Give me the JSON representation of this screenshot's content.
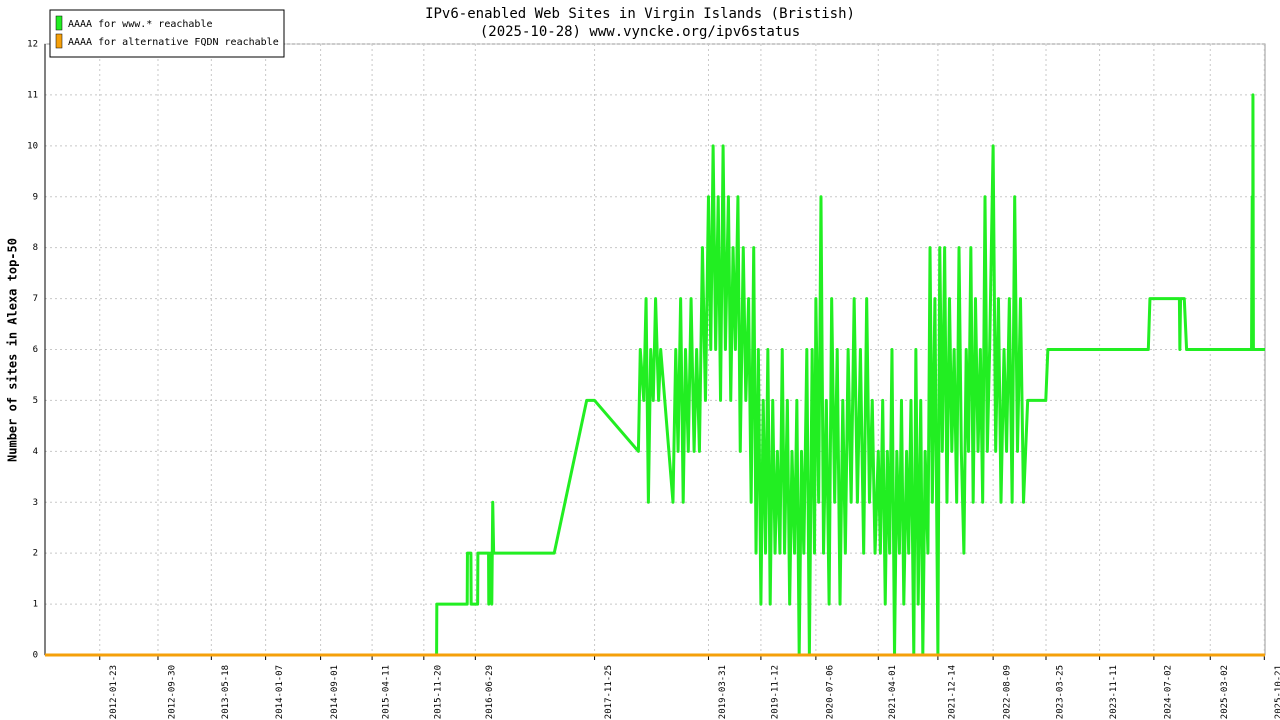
{
  "chart_data": {
    "type": "line",
    "title": "IPv6-enabled Web Sites in Virgin Islands (Bristish)",
    "subtitle": "(2025-10-28) www.vyncke.org/ipv6status",
    "y_label": "Number of sites in Alexa top-50",
    "xlim": [
      "2011-06-01",
      "2025-10-24"
    ],
    "xticks": [
      "2012-01-23",
      "2012-09-30",
      "2013-05-18",
      "2014-01-07",
      "2014-09-01",
      "2015-04-11",
      "2015-11-20",
      "2016-06-29",
      "2017-11-25",
      "2019-03-31",
      "2019-11-12",
      "2020-07-06",
      "2021-04-01",
      "2021-12-14",
      "2022-08-09",
      "2023-03-25",
      "2023-11-11",
      "2024-07-02",
      "2025-03-02",
      "2025-10-21"
    ],
    "ylim": [
      0,
      12
    ],
    "yticks": [
      0,
      1,
      2,
      3,
      4,
      5,
      6,
      7,
      8,
      9,
      10,
      11,
      12
    ],
    "grid": true,
    "legend": "top-left",
    "series": [
      {
        "name": "AAAA for www.* reachable",
        "color": "#22ee22",
        "x": [
          "2011-06-01",
          "2016-01-14",
          "2016-01-15",
          "2016-05-25",
          "2016-05-26",
          "2016-06-10",
          "2016-06-11",
          "2016-07-09",
          "2016-07-10",
          "2016-08-25",
          "2016-08-26",
          "2016-09-01",
          "2016-09-08",
          "2016-09-12",
          "2016-09-16",
          "2017-06-04",
          "2017-10-22",
          "2017-11-25",
          "2018-06-02",
          "2018-06-10",
          "2018-06-25",
          "2018-07-05",
          "2018-07-15",
          "2018-07-25",
          "2018-08-05",
          "2018-08-15",
          "2018-08-28",
          "2018-09-06",
          "2018-10-29",
          "2018-11-10",
          "2018-11-20",
          "2018-12-01",
          "2018-12-12",
          "2018-12-22",
          "2019-01-03",
          "2019-01-15",
          "2019-01-28",
          "2019-02-08",
          "2019-02-20",
          "2019-03-05",
          "2019-03-18",
          "2019-03-31",
          "2019-04-10",
          "2019-04-20",
          "2019-05-01",
          "2019-05-12",
          "2019-05-22",
          "2019-06-02",
          "2019-06-12",
          "2019-06-25",
          "2019-07-05",
          "2019-07-15",
          "2019-07-25",
          "2019-08-05",
          "2019-08-15",
          "2019-08-28",
          "2019-09-08",
          "2019-09-20",
          "2019-10-01",
          "2019-10-12",
          "2019-10-22",
          "2019-11-01",
          "2019-11-12",
          "2019-11-22",
          "2019-12-02",
          "2019-12-12",
          "2019-12-22",
          "2020-01-02",
          "2020-01-12",
          "2020-01-22",
          "2020-02-02",
          "2020-02-12",
          "2020-02-22",
          "2020-03-05",
          "2020-03-15",
          "2020-03-25",
          "2020-04-05",
          "2020-04-15",
          "2020-04-25",
          "2020-05-05",
          "2020-05-15",
          "2020-05-28",
          "2020-06-08",
          "2020-06-20",
          "2020-06-30",
          "2020-07-06",
          "2020-07-18",
          "2020-07-28",
          "2020-08-08",
          "2020-08-20",
          "2020-09-01",
          "2020-09-12",
          "2020-09-25",
          "2020-10-06",
          "2020-10-18",
          "2020-10-30",
          "2020-11-10",
          "2020-11-22",
          "2020-12-05",
          "2020-12-18",
          "2021-01-01",
          "2021-01-14",
          "2021-01-28",
          "2021-02-10",
          "2021-02-22",
          "2021-03-06",
          "2021-03-18",
          "2021-04-01",
          "2021-04-10",
          "2021-04-20",
          "2021-05-01",
          "2021-05-10",
          "2021-05-20",
          "2021-05-30",
          "2021-06-10",
          "2021-06-20",
          "2021-07-01",
          "2021-07-10",
          "2021-07-20",
          "2021-08-01",
          "2021-08-10",
          "2021-08-20",
          "2021-09-01",
          "2021-09-10",
          "2021-09-20",
          "2021-10-01",
          "2021-10-10",
          "2021-10-20",
          "2021-11-01",
          "2021-11-10",
          "2021-11-20",
          "2021-12-01",
          "2021-12-14",
          "2021-12-22",
          "2022-01-02",
          "2022-01-12",
          "2022-01-22",
          "2022-02-02",
          "2022-02-12",
          "2022-02-22",
          "2022-03-05",
          "2022-03-15",
          "2022-03-25",
          "2022-04-05",
          "2022-04-15",
          "2022-04-25",
          "2022-05-05",
          "2022-05-15",
          "2022-05-25",
          "2022-06-05",
          "2022-06-15",
          "2022-06-25",
          "2022-07-05",
          "2022-07-15",
          "2022-07-25",
          "2022-08-09",
          "2022-08-20",
          "2022-09-01",
          "2022-09-12",
          "2022-09-25",
          "2022-10-06",
          "2022-10-18",
          "2022-10-30",
          "2022-11-10",
          "2022-11-22",
          "2022-12-05",
          "2022-12-18",
          "2023-01-05",
          "2023-03-24",
          "2023-04-02",
          "2024-06-08",
          "2024-06-15",
          "2024-10-20",
          "2024-10-22",
          "2024-10-25",
          "2024-11-10",
          "2024-11-20",
          "2025-08-27",
          "2025-08-30",
          "2025-09-01",
          "2025-09-02",
          "2025-09-04",
          "2025-10-24"
        ],
        "values": [
          0,
          0,
          1,
          1,
          2,
          2,
          1,
          1,
          2,
          2,
          1,
          2,
          1,
          3,
          2,
          2,
          5,
          5,
          4,
          6,
          5,
          7,
          3,
          6,
          5,
          7,
          5,
          6,
          3,
          6,
          4,
          7,
          3,
          6,
          4,
          7,
          4,
          6,
          4,
          8,
          5,
          9,
          6,
          10,
          6,
          9,
          5,
          10,
          6,
          9,
          5,
          8,
          6,
          9,
          4,
          8,
          5,
          7,
          3,
          8,
          2,
          6,
          1,
          5,
          2,
          6,
          1,
          5,
          2,
          4,
          2,
          6,
          2,
          5,
          1,
          4,
          2,
          5,
          0,
          4,
          2,
          6,
          0,
          6,
          2,
          7,
          3,
          9,
          2,
          5,
          1,
          7,
          3,
          6,
          1,
          5,
          2,
          6,
          3,
          7,
          3,
          6,
          2,
          7,
          3,
          5,
          2,
          4,
          2,
          5,
          1,
          4,
          2,
          6,
          0,
          4,
          2,
          5,
          1,
          4,
          2,
          5,
          0,
          6,
          1,
          5,
          0,
          4,
          2,
          8,
          3,
          7,
          0,
          8,
          4,
          8,
          3,
          7,
          4,
          6,
          3,
          8,
          4,
          2,
          6,
          4,
          8,
          3,
          7,
          4,
          6,
          3,
          9,
          4,
          6,
          10,
          4,
          7,
          3,
          6,
          4,
          7,
          3,
          9,
          4,
          7,
          3,
          5,
          5,
          6,
          6,
          7,
          7,
          6,
          7,
          7,
          6,
          6,
          9,
          6,
          11,
          6,
          6
        ]
      },
      {
        "name": "AAAA for alternative FQDN reachable",
        "color": "#f5a00a",
        "x": [
          "2011-06-01",
          "2025-10-24"
        ],
        "values": [
          0,
          0
        ]
      }
    ]
  }
}
